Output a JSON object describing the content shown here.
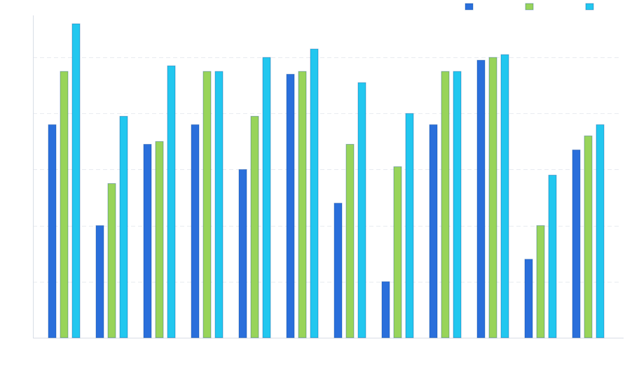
{
  "chart_data": {
    "type": "bar",
    "categories": [
      "",
      "",
      "",
      "",
      "",
      "",
      "",
      "",
      "",
      "",
      "",
      ""
    ],
    "series": [
      {
        "color": "#2a6fdb",
        "values": [
          76,
          40,
          69,
          76,
          60,
          94,
          48,
          20,
          76,
          99,
          28,
          67
        ]
      },
      {
        "color": "#98d45a",
        "values": [
          95,
          55,
          70,
          95,
          79,
          95,
          69,
          61,
          95,
          100,
          40,
          72
        ]
      },
      {
        "color": "#22c7ef",
        "values": [
          112,
          79,
          97,
          95,
          100,
          103,
          91,
          80,
          95,
          101,
          58,
          76
        ]
      }
    ],
    "ylim": [
      0,
      115
    ],
    "grid": true,
    "legend": "top-right"
  }
}
